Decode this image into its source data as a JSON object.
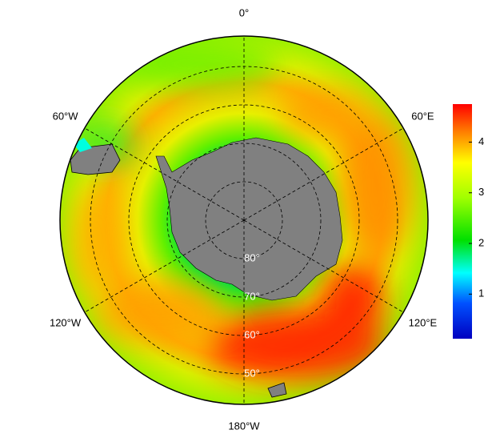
{
  "map": {
    "longitude_labels": [
      {
        "value": 0,
        "label": "0°"
      },
      {
        "value": 60,
        "label": "60°E"
      },
      {
        "value": 120,
        "label": "120°E"
      },
      {
        "value": 180,
        "label": "180°W"
      },
      {
        "value": -120,
        "label": "120°W"
      },
      {
        "value": -60,
        "label": "60°W"
      }
    ],
    "latitude_labels": [
      {
        "value": 80,
        "label": "80°"
      },
      {
        "value": 70,
        "label": "70°"
      },
      {
        "value": 60,
        "label": "60°"
      },
      {
        "value": 50,
        "label": "50°"
      }
    ]
  },
  "colorbar": {
    "lim": [
      0.12,
      4.75
    ],
    "ticks": [
      1,
      2,
      3,
      4
    ]
  }
}
